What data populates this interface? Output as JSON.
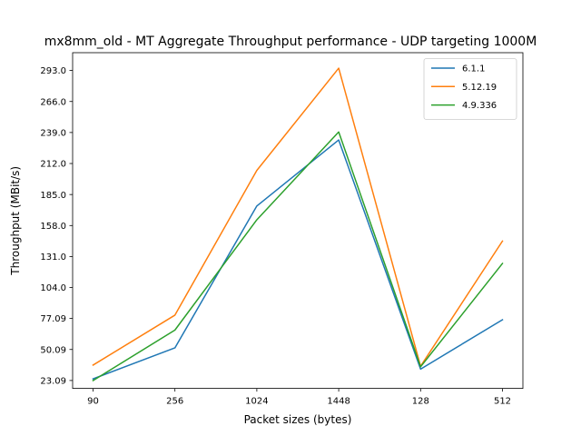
{
  "chart_data": {
    "type": "line",
    "title": "mx8mm_old - MT Aggregate Throughput performance - UDP targeting 1000M",
    "xlabel": "Packet sizes (bytes)",
    "ylabel": "Throughput (MBit/s)",
    "categories": [
      "90",
      "256",
      "1024",
      "1448",
      "128",
      "512"
    ],
    "yticks": [
      "23.09",
      "50.09",
      "77.09",
      "104.0",
      "131.0",
      "158.0",
      "185.0",
      "212.0",
      "239.0",
      "266.0",
      "293.0"
    ],
    "ytick_values": [
      23.09,
      50.09,
      77.09,
      104.0,
      131.0,
      158.0,
      185.0,
      212.0,
      239.0,
      266.0,
      293.0
    ],
    "ylim": [
      16.2,
      308.5
    ],
    "legend_position": "top-right",
    "series": [
      {
        "name": "6.1.1",
        "color": "#1f77b4",
        "values": [
          24.5,
          51.5,
          175.0,
          232.5,
          33.0,
          76.0
        ]
      },
      {
        "name": "5.12.19",
        "color": "#ff7f0e",
        "values": [
          36.5,
          80.0,
          206.0,
          295.0,
          35.5,
          144.5
        ]
      },
      {
        "name": "4.9.336",
        "color": "#2ca02c",
        "values": [
          23.0,
          67.0,
          163.0,
          239.5,
          35.0,
          125.0
        ]
      }
    ]
  }
}
